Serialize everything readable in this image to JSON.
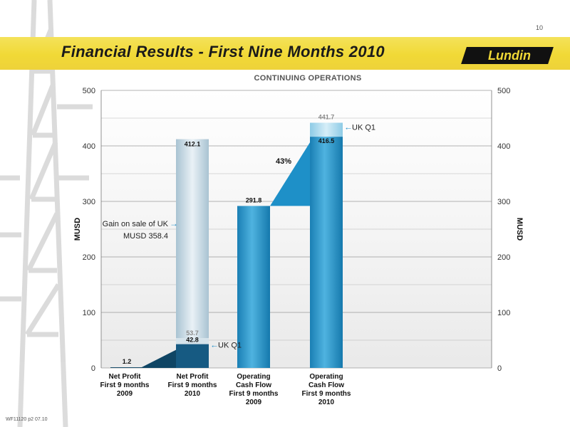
{
  "slide": {
    "page_number": "10",
    "title": "Financial Results -  First Nine Months 2010",
    "logo_text": "Lundin",
    "footer_code": "WF11120 p2 07.10"
  },
  "chart_data": {
    "type": "bar",
    "title": "CONTINUING OPERATIONS",
    "ylabel": "MUSD",
    "ylabel_right": "MUSD",
    "ylim": [
      0,
      500
    ],
    "yticks": [
      0,
      100,
      200,
      300,
      400,
      500
    ],
    "categories": [
      [
        "Net Profit",
        "First 9 months",
        "2009"
      ],
      [
        "Net Profit",
        "First 9 months",
        "2010"
      ],
      [
        "Operating",
        "Cash Flow",
        "First 9 months",
        "2009"
      ],
      [
        "Operating",
        "Cash Flow",
        "First 9 months",
        "2010"
      ]
    ],
    "bars": [
      {
        "base": 1.2,
        "base_label": "1.2"
      },
      {
        "base": 42.8,
        "base_label": "42.8",
        "total": 412.1,
        "total_label": "412.1",
        "uk_q1_top": 53.7,
        "uk_q1_label": "53.7",
        "gain_segment": 358.4
      },
      {
        "base": 291.8,
        "base_label": "291.8"
      },
      {
        "base": 416.5,
        "base_label": "416.5",
        "uk_q1_top": 441.7,
        "uk_q1_label": "441.7"
      }
    ],
    "annotations": {
      "gain_line1": "Gain on sale of UK",
      "gain_line2": "MUSD 358.4",
      "uk_q1_a": "UK Q1",
      "uk_q1_b": "UK Q1",
      "growth": "43%"
    },
    "colors": {
      "bar": "#1e8fc6",
      "bar_light": "#9fd3ea",
      "gain_bar": "#b7cfdc",
      "arrow_dark": "#0f4564",
      "arrow_blue": "#1e90c8",
      "pointer": "#2b93c9"
    },
    "grid": true
  }
}
